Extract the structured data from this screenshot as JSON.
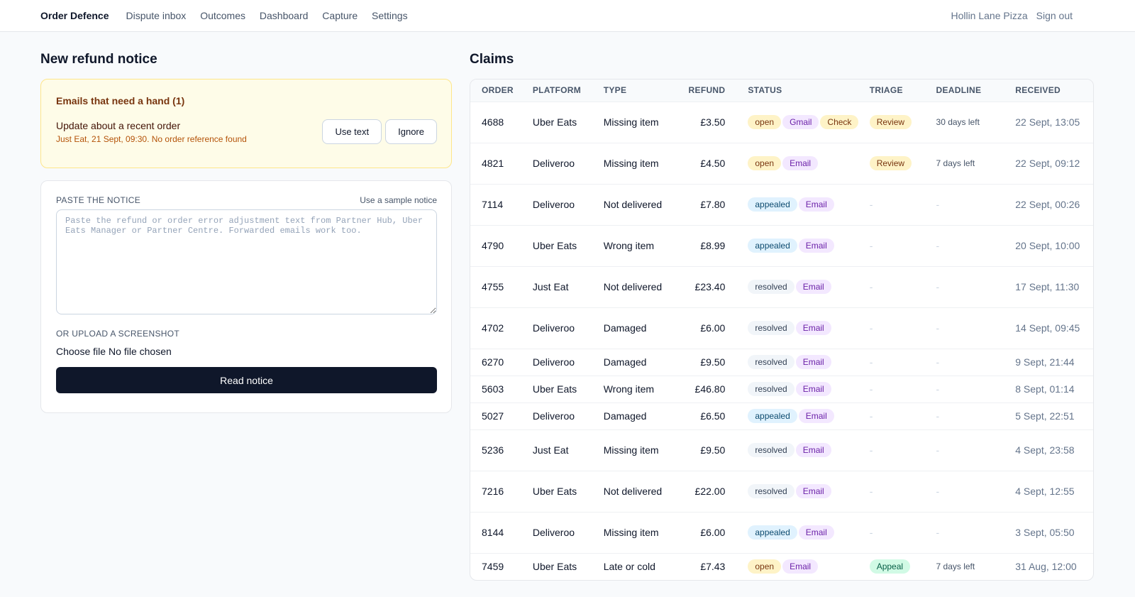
{
  "header": {
    "brand": "Order Defence",
    "nav": [
      "Dispute inbox",
      "Outcomes",
      "Dashboard",
      "Capture",
      "Settings"
    ],
    "account": "Hollin Lane Pizza",
    "sign_out": "Sign out"
  },
  "left": {
    "title": "New refund notice",
    "alert": {
      "title": "Emails that need a hand (1)",
      "subject": "Update about a recent order",
      "meta": "Just Eat, 21 Sept, 09:30. No order reference found",
      "use_text": "Use text",
      "ignore": "Ignore"
    },
    "form": {
      "paste_label": "PASTE THE NOTICE",
      "sample_link": "Use a sample notice",
      "textarea_placeholder": "Paste the refund or order error adjustment text from Partner Hub, Uber Eats Manager or Partner Centre. Forwarded emails work too.",
      "upload_label": "OR UPLOAD A SCREENSHOT",
      "choose_file": "Choose file",
      "no_file": "No file chosen",
      "submit": "Read notice"
    }
  },
  "claims": {
    "title": "Claims",
    "columns": [
      "ORDER",
      "PLATFORM",
      "TYPE",
      "REFUND",
      "STATUS",
      "TRIAGE",
      "DEADLINE",
      "RECEIVED"
    ],
    "rows": [
      {
        "order": "4688",
        "platform": "Uber Eats",
        "type": "Missing item",
        "refund": "£3.50",
        "status": "open",
        "channel": "Gmail",
        "extra": "Check",
        "triage": "Review",
        "deadline": "30 days left",
        "received": "22 Sept, 13:05"
      },
      {
        "order": "4821",
        "platform": "Deliveroo",
        "type": "Missing item",
        "refund": "£4.50",
        "status": "open",
        "channel": "Email",
        "triage": "Review",
        "deadline": "7 days left",
        "received": "22 Sept, 09:12"
      },
      {
        "order": "7114",
        "platform": "Deliveroo",
        "type": "Not delivered",
        "refund": "£7.80",
        "status": "appealed",
        "channel": "Email",
        "triage": "-",
        "deadline": "-",
        "received": "22 Sept, 00:26"
      },
      {
        "order": "4790",
        "platform": "Uber Eats",
        "type": "Wrong item",
        "refund": "£8.99",
        "status": "appealed",
        "channel": "Email",
        "triage": "-",
        "deadline": "-",
        "received": "20 Sept, 10:00"
      },
      {
        "order": "4755",
        "platform": "Just Eat",
        "type": "Not delivered",
        "refund": "£23.40",
        "status": "resolved",
        "channel": "Email",
        "triage": "-",
        "deadline": "-",
        "received": "17 Sept, 11:30"
      },
      {
        "order": "4702",
        "platform": "Deliveroo",
        "type": "Damaged",
        "refund": "£6.00",
        "status": "resolved",
        "channel": "Email",
        "triage": "-",
        "deadline": "-",
        "received": "14 Sept, 09:45"
      },
      {
        "order": "6270",
        "platform": "Deliveroo",
        "type": "Damaged",
        "refund": "£9.50",
        "status": "resolved",
        "channel": "Email",
        "triage": "-",
        "deadline": "-",
        "received": "9 Sept, 21:44"
      },
      {
        "order": "5603",
        "platform": "Uber Eats",
        "type": "Wrong item",
        "refund": "£46.80",
        "status": "resolved",
        "channel": "Email",
        "triage": "-",
        "deadline": "-",
        "received": "8 Sept, 01:14"
      },
      {
        "order": "5027",
        "platform": "Deliveroo",
        "type": "Damaged",
        "refund": "£6.50",
        "status": "appealed",
        "channel": "Email",
        "triage": "-",
        "deadline": "-",
        "received": "5 Sept, 22:51"
      },
      {
        "order": "5236",
        "platform": "Just Eat",
        "type": "Missing item",
        "refund": "£9.50",
        "status": "resolved",
        "channel": "Email",
        "triage": "-",
        "deadline": "-",
        "received": "4 Sept, 23:58"
      },
      {
        "order": "7216",
        "platform": "Uber Eats",
        "type": "Not delivered",
        "refund": "£22.00",
        "status": "resolved",
        "channel": "Email",
        "triage": "-",
        "deadline": "-",
        "received": "4 Sept, 12:55"
      },
      {
        "order": "8144",
        "platform": "Deliveroo",
        "type": "Missing item",
        "refund": "£6.00",
        "status": "appealed",
        "channel": "Email",
        "triage": "-",
        "deadline": "-",
        "received": "3 Sept, 05:50"
      },
      {
        "order": "7459",
        "platform": "Uber Eats",
        "type": "Late or cold",
        "refund": "£7.43",
        "status": "open",
        "channel": "Email",
        "triage": "Appeal",
        "deadline": "7 days left",
        "received": "31 Aug, 12:00"
      }
    ]
  }
}
